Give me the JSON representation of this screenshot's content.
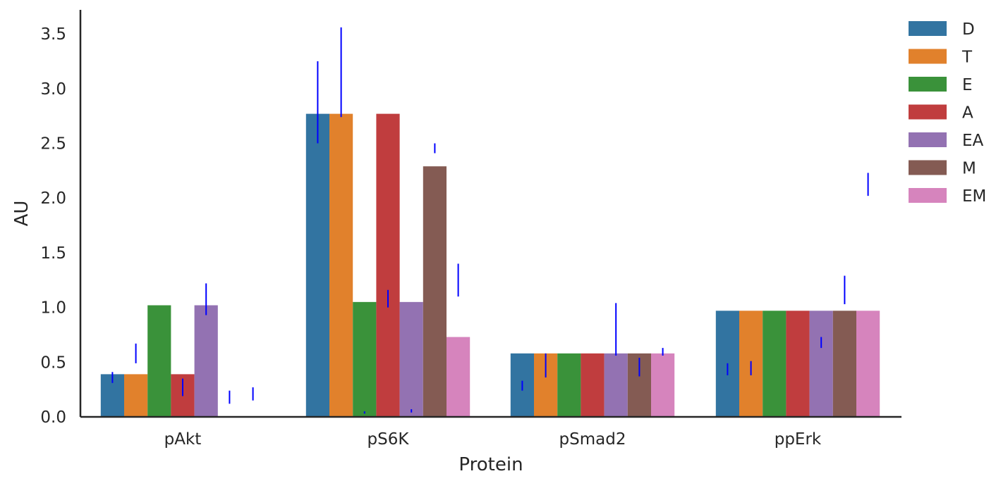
{
  "chart_data": {
    "type": "bar",
    "xlabel": "Protein",
    "ylabel": "AU",
    "categories": [
      "pAkt",
      "pS6K",
      "pSmad2",
      "ppErk"
    ],
    "ylim": [
      0,
      3.72
    ],
    "yticks": [
      "0.0",
      "0.5",
      "1.0",
      "1.5",
      "2.0",
      "2.5",
      "3.0",
      "3.5"
    ],
    "grid": false,
    "legend_position": "top-right, outside plot",
    "series": [
      {
        "name": "D",
        "color": "#3274a1",
        "values": [
          0.39,
          2.77,
          0.58,
          0.97
        ]
      },
      {
        "name": "T",
        "color": "#e1812c",
        "values": [
          0.39,
          2.77,
          0.58,
          0.97
        ]
      },
      {
        "name": "E",
        "color": "#3a923a",
        "values": [
          1.02,
          1.05,
          0.58,
          0.97
        ]
      },
      {
        "name": "A",
        "color": "#c03d3e",
        "values": [
          0.39,
          2.77,
          0.58,
          0.97
        ]
      },
      {
        "name": "EA",
        "color": "#9372b2",
        "values": [
          1.02,
          1.05,
          0.58,
          0.97
        ]
      },
      {
        "name": "M",
        "color": "#845b53",
        "values": [
          0.0,
          2.29,
          0.58,
          0.97
        ]
      },
      {
        "name": "EM",
        "color": "#d684bd",
        "values": [
          0.0,
          0.73,
          0.58,
          0.97
        ]
      }
    ],
    "error_bars_color": "#0000ff",
    "error_bars": {
      "D": [
        [
          0.31,
          0.41
        ],
        [
          2.5,
          3.25
        ],
        [
          0.24,
          0.33
        ],
        [
          0.38,
          0.49
        ]
      ],
      "T": [
        [
          0.49,
          0.67
        ],
        [
          2.74,
          3.56
        ],
        [
          0.36,
          0.58
        ],
        [
          0.38,
          0.51
        ]
      ],
      "E": [
        null,
        [
          0.03,
          0.05
        ],
        null,
        null
      ],
      "A": [
        [
          0.19,
          0.35
        ],
        [
          1.0,
          1.16
        ],
        [
          null,
          null
        ],
        [
          null,
          null
        ]
      ],
      "EA": [
        [
          0.93,
          1.22
        ],
        [
          0.04,
          0.07
        ],
        [
          0.56,
          1.04
        ],
        [
          0.63,
          0.73
        ]
      ],
      "M": [
        [
          0.12,
          0.24
        ],
        [
          2.41,
          2.5
        ],
        [
          0.37,
          0.54
        ],
        [
          1.03,
          1.29
        ]
      ],
      "EM": [
        [
          0.15,
          0.27
        ],
        [
          1.1,
          1.4
        ],
        [
          0.56,
          0.63
        ],
        [
          2.02,
          2.23
        ]
      ]
    }
  }
}
